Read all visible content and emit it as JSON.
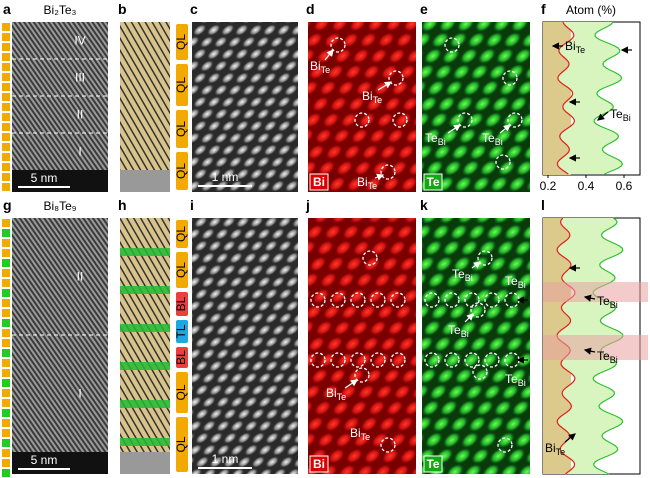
{
  "row1": {
    "a": {
      "letter": "a",
      "title": "Bi₂Te₃",
      "regions": [
        "IV",
        "III",
        "II",
        "I"
      ],
      "scale": "5 nm"
    },
    "b": {
      "letter": "b"
    },
    "c": {
      "letter": "c",
      "layers": [
        {
          "label": "QL",
          "color": "#f2aa00"
        },
        {
          "label": "QL",
          "color": "#f2aa00"
        },
        {
          "label": "QL",
          "color": "#f2aa00"
        },
        {
          "label": "QL",
          "color": "#f2aa00"
        }
      ],
      "scale": "1 nm"
    },
    "d": {
      "letter": "d",
      "element": "Bi",
      "labels": [
        {
          "main": "Bi",
          "sub": "Te"
        },
        {
          "main": "Bi",
          "sub": "Te"
        },
        {
          "main": "Bi",
          "sub": "Te"
        }
      ]
    },
    "e": {
      "letter": "e",
      "element": "Te",
      "labels": [
        {
          "main": "Te",
          "sub": "Bi"
        },
        {
          "main": "Te",
          "sub": "Bi"
        }
      ]
    },
    "f": {
      "letter": "f",
      "axis_title": "Atom (%)",
      "ticks": [
        0.2,
        0.4,
        0.6
      ],
      "labels": [
        {
          "main": "Bi",
          "sub": "Te"
        },
        {
          "main": "Te",
          "sub": "Bi"
        }
      ]
    }
  },
  "row2": {
    "g": {
      "letter": "g",
      "title": "Bi₈Te₉",
      "regions": [
        "II",
        "I"
      ],
      "scale": "5 nm"
    },
    "h": {
      "letter": "h"
    },
    "i": {
      "letter": "i",
      "layers": [
        {
          "label": "QL",
          "color": "#f2aa00"
        },
        {
          "label": "QL",
          "color": "#f2aa00"
        },
        {
          "label": "BL",
          "color": "#e8413c"
        },
        {
          "label": "TL",
          "color": "#1ea8e0"
        },
        {
          "label": "BL",
          "color": "#e8413c"
        },
        {
          "label": "QL",
          "color": "#f2aa00"
        },
        {
          "label": "QL",
          "color": "#f2aa00"
        }
      ],
      "scale": "1 nm"
    },
    "j": {
      "letter": "j",
      "element": "Bi",
      "labels": [
        {
          "main": "Bi",
          "sub": "Te"
        },
        {
          "main": "Bi",
          "sub": "Te"
        }
      ]
    },
    "k": {
      "letter": "k",
      "element": "Te",
      "labels": [
        {
          "main": "Te",
          "sub": "Bi"
        },
        {
          "main": "Te",
          "sub": "Bi"
        },
        {
          "main": "Te",
          "sub": "Bi"
        },
        {
          "main": "Te",
          "sub": "Bi"
        }
      ]
    },
    "l": {
      "letter": "l",
      "labels": [
        {
          "main": "Te",
          "sub": "Bi"
        },
        {
          "main": "Te",
          "sub": "Bi"
        },
        {
          "main": "Bi",
          "sub": "Te"
        }
      ]
    }
  }
}
